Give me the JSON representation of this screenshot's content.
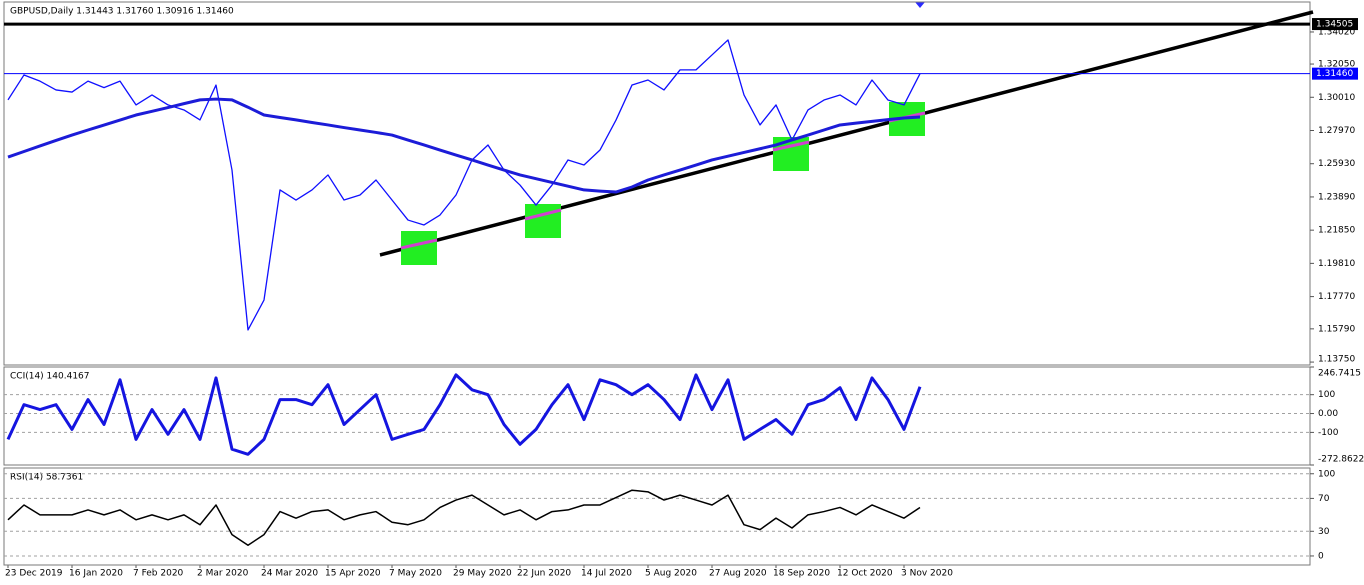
{
  "chart_data": [
    {
      "type": "line",
      "title": "GBPUSD,Daily 1.31443 1.31760 1.30916 1.31460",
      "categories": [
        "23 Dec 2019",
        null,
        null,
        null,
        "16 Jan 2020",
        null,
        null,
        null,
        "7 Feb 2020",
        null,
        null,
        null,
        "2 Mar 2020",
        null,
        null,
        null,
        "24 Mar 2020",
        null,
        null,
        null,
        "15 Apr 2020",
        null,
        null,
        null,
        "7 May 2020",
        null,
        null,
        null,
        "29 May 2020",
        null,
        null,
        null,
        "22 Jun 2020",
        null,
        null,
        null,
        "14 Jul 2020",
        null,
        null,
        null,
        "5 Aug 2020",
        null,
        null,
        null,
        "27 Aug 2020",
        null,
        null,
        null,
        "18 Sep 2020",
        null,
        null,
        null,
        "12 Oct 2020",
        null,
        null,
        null,
        "3 Nov 2020",
        null
      ],
      "series": [
        {
          "color": "#1010ff",
          "width": 1.3,
          "values": [
            1.2985,
            1.3138,
            1.31,
            1.3046,
            1.3033,
            1.31,
            1.306,
            1.31,
            1.2954,
            1.3015,
            1.2954,
            1.2923,
            1.2862,
            1.3076,
            1.2554,
            1.1572,
            1.1756,
            1.2432,
            1.237,
            1.2432,
            1.2524,
            1.237,
            1.2401,
            1.2493,
            1.237,
            1.2247,
            1.2217,
            1.2278,
            1.2401,
            1.2616,
            1.2708,
            1.2554,
            1.2462,
            1.2339,
            1.2462,
            1.2616,
            1.2585,
            1.2677,
            1.2861,
            1.3076,
            1.3107,
            1.3046,
            1.3169,
            1.3169,
            1.3261,
            1.3353,
            1.3015,
            1.2831,
            1.2954,
            1.2739,
            1.2923,
            1.2984,
            1.3015,
            1.2954,
            1.3107,
            1.2984,
            1.2954,
            1.3146
          ]
        },
        {
          "color": "#1c1cd8",
          "width": 3,
          "values": [
            1.2634,
            1.2668,
            1.2702,
            1.2736,
            1.2769,
            1.28,
            1.283,
            1.2861,
            1.2892,
            1.2915,
            1.2938,
            1.2962,
            1.2985,
            1.299,
            1.2985,
            1.294,
            1.2892,
            1.2877,
            1.2862,
            1.2846,
            1.2831,
            1.2815,
            1.28,
            1.2785,
            1.2769,
            1.2738,
            1.2708,
            1.2677,
            1.2646,
            1.2616,
            1.2585,
            1.2554,
            1.2524,
            1.2501,
            1.2478,
            1.2455,
            1.2432,
            1.2425,
            1.2419,
            1.245,
            1.2493,
            1.2524,
            1.2554,
            1.2585,
            1.2616,
            1.2639,
            1.2662,
            1.2685,
            1.2708,
            1.2739,
            1.2769,
            1.28,
            1.2831,
            1.2842,
            1.2853,
            1.2864,
            1.2874,
            1.288
          ]
        }
      ],
      "levels": [
        {
          "value": 1.34505,
          "label": "1.34505",
          "color": "#000000",
          "width": 3
        },
        {
          "value": 1.3146,
          "label": "1.31460",
          "color": "#0000ff",
          "width": 1
        }
      ],
      "ylim": [
        1.1357,
        1.3586
      ],
      "yticks": [
        {
          "value": 1.3402,
          "label": "1.34020"
        },
        {
          "value": 1.3205,
          "label": "1.32050"
        },
        {
          "value": 1.3001,
          "label": "1.30010"
        },
        {
          "value": 1.2797,
          "label": "1.27970"
        },
        {
          "value": 1.2593,
          "label": "1.25930"
        },
        {
          "value": 1.2389,
          "label": "1.23890"
        },
        {
          "value": 1.2185,
          "label": "1.21850"
        },
        {
          "value": 1.1981,
          "label": "1.19810"
        },
        {
          "value": 1.1777,
          "label": "1.17770"
        },
        {
          "value": 1.1579,
          "label": "1.15790"
        },
        {
          "value": 1.1375,
          "label": "1.13750"
        }
      ],
      "grid": false
    },
    {
      "type": "line",
      "title": "CCI(14) 140.4167",
      "series": [
        {
          "color": "#1515e0",
          "width": 3,
          "values": [
            -137,
            47,
            21,
            47,
            -84,
            74,
            -58,
            179,
            -137,
            21,
            -110,
            21,
            -137,
            189,
            -189,
            -216,
            -137,
            74,
            74,
            47,
            153,
            -58,
            21,
            100,
            -137,
            -110,
            -84,
            47,
            205,
            126,
            100,
            -58,
            -163,
            -84,
            47,
            153,
            -32,
            179,
            153,
            100,
            153,
            74,
            -32,
            205,
            21,
            179,
            -137,
            -84,
            -32,
            -110,
            47,
            74,
            137,
            -32,
            189,
            74,
            -84,
            142
          ]
        }
      ],
      "ylim": [
        -272.8622,
        246.7415
      ],
      "yticks": [
        {
          "value": 246.7415,
          "label": "246.7415"
        },
        100,
        {
          "value": 0,
          "label": "0.00"
        },
        -100,
        {
          "value": -272.8622,
          "label": "-272.8622"
        }
      ],
      "grid": true
    },
    {
      "type": "line",
      "title": "RSI(14) 58.7361",
      "series": [
        {
          "color": "#000000",
          "width": 1.5,
          "values": [
            44,
            62,
            50,
            50,
            50,
            56,
            50,
            56,
            44,
            50,
            44,
            50,
            38,
            62,
            26,
            13,
            26,
            54,
            46,
            54,
            56,
            44,
            50,
            54,
            41,
            38,
            44,
            59,
            68,
            74,
            62,
            50,
            56,
            44,
            54,
            56,
            62,
            62,
            71,
            80,
            78,
            68,
            74,
            68,
            62,
            74,
            38,
            32,
            46,
            34,
            50,
            54,
            59,
            50,
            62,
            54,
            46,
            59
          ]
        }
      ],
      "ylim": [
        -11,
        107
      ],
      "yticks": [
        100,
        70,
        30,
        0
      ],
      "grid": true
    }
  ]
}
